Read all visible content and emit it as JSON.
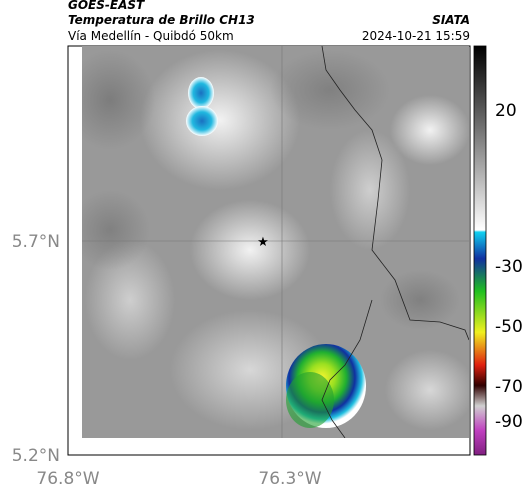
{
  "header": {
    "source": "GOES-EAST",
    "title": "Temperatura de Brillo CH13",
    "org": "SIATA",
    "subtitle": "Vía Medellín - Quibdó 50km",
    "datetime": "2024-10-21 15:59"
  },
  "axes": {
    "yticks": [
      "5.7°N",
      "5.2°N"
    ],
    "xticks": [
      "76.8°W",
      "76.3°W"
    ]
  },
  "colorbar": {
    "ticks": [
      "20",
      "-30",
      "-50",
      "-70",
      "-90"
    ]
  }
}
